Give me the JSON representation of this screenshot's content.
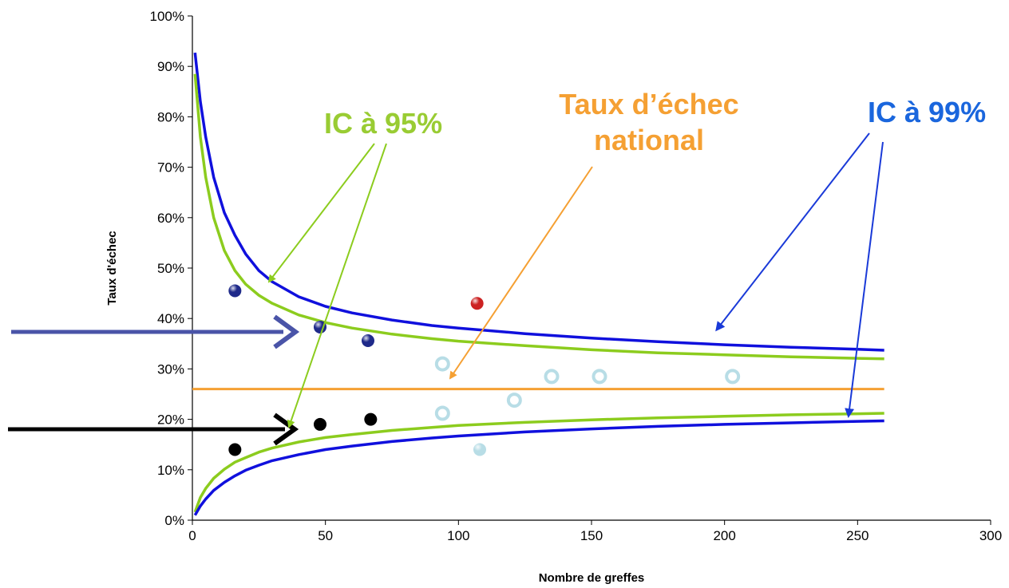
{
  "chart_data": {
    "type": "scatter",
    "xlabel": "Nombre de greffes",
    "ylabel": "Taux d'échec",
    "xlim": [
      0,
      300
    ],
    "ylim": [
      0,
      100
    ],
    "x_ticks": [
      "0",
      "50",
      "100",
      "150",
      "200",
      "250",
      "300"
    ],
    "y_ticks": [
      "0%",
      "10%",
      "20%",
      "30%",
      "40%",
      "50%",
      "60%",
      "70%",
      "80%",
      "90%",
      "100%"
    ],
    "national_rate": 26,
    "series": [
      {
        "kind": "points",
        "color": "#1f2a8a",
        "style": "filled",
        "points": [
          [
            16,
            45.5
          ],
          [
            48,
            38.3
          ],
          [
            66,
            35.6
          ]
        ]
      },
      {
        "kind": "points",
        "color": "#cc2222",
        "style": "filled",
        "points": [
          [
            107,
            43
          ]
        ]
      },
      {
        "kind": "points",
        "color": "#000000",
        "style": "filled",
        "points": [
          [
            16,
            14
          ],
          [
            48,
            19
          ],
          [
            67,
            20
          ]
        ]
      },
      {
        "kind": "points",
        "color": "#b8dde6",
        "style": "open",
        "points": [
          [
            94,
            31
          ],
          [
            94,
            21.2
          ],
          [
            121,
            23.8
          ],
          [
            135,
            28.5
          ],
          [
            153,
            28.5
          ],
          [
            203,
            28.5
          ]
        ]
      },
      {
        "kind": "points",
        "color": "#b8dde6",
        "style": "filled",
        "points": [
          [
            108,
            14
          ]
        ]
      }
    ],
    "curves": {
      "ic99_upper": {
        "color": "#1010dd",
        "x": [
          1,
          3,
          5,
          8,
          12,
          16,
          20,
          25,
          30,
          40,
          50,
          60,
          75,
          90,
          100,
          125,
          150,
          175,
          200,
          225,
          250,
          260
        ],
        "y": [
          92.7,
          83,
          76,
          68,
          61,
          56.5,
          52.8,
          49.5,
          47.3,
          44.3,
          42.4,
          41.1,
          39.7,
          38.6,
          38.1,
          37,
          36.1,
          35.4,
          34.8,
          34.3,
          33.9,
          33.7
        ]
      },
      "ic95_upper": {
        "color": "#8ccc1e",
        "x": [
          1,
          3,
          5,
          8,
          12,
          16,
          20,
          25,
          30,
          40,
          50,
          60,
          75,
          90,
          100,
          125,
          150,
          175,
          200,
          225,
          250,
          260
        ],
        "y": [
          88.5,
          76,
          68,
          60,
          53.5,
          49.5,
          46.8,
          44.6,
          43,
          40.7,
          39.2,
          38.1,
          36.9,
          36,
          35.5,
          34.6,
          33.8,
          33.2,
          32.8,
          32.4,
          32.1,
          32
        ]
      },
      "ic95_lower": {
        "color": "#8ccc1e",
        "x": [
          1,
          3,
          5,
          8,
          12,
          16,
          20,
          25,
          30,
          40,
          50,
          60,
          75,
          90,
          100,
          125,
          150,
          175,
          200,
          225,
          250,
          260
        ],
        "y": [
          1.6,
          4.5,
          6.3,
          8.3,
          10.1,
          11.5,
          12.4,
          13.5,
          14.3,
          15.5,
          16.4,
          17,
          17.8,
          18.4,
          18.8,
          19.4,
          19.9,
          20.3,
          20.6,
          20.9,
          21.1,
          21.2
        ]
      },
      "ic99_lower": {
        "color": "#1010dd",
        "x": [
          1,
          3,
          5,
          8,
          12,
          16,
          20,
          25,
          30,
          40,
          50,
          60,
          75,
          90,
          100,
          125,
          150,
          175,
          200,
          225,
          250,
          260
        ],
        "y": [
          1,
          2.8,
          4.2,
          5.9,
          7.5,
          8.8,
          9.9,
          10.9,
          11.8,
          13,
          14,
          14.7,
          15.6,
          16.3,
          16.7,
          17.5,
          18.1,
          18.6,
          19,
          19.3,
          19.6,
          19.7
        ]
      }
    },
    "annotations": {
      "ic95": {
        "text": "IC à 95%",
        "color": "#99cc33"
      },
      "national": {
        "line1": "Taux d’échec",
        "line2": "national",
        "color": "#f5a033"
      },
      "ic99": {
        "text": "IC à 99%",
        "color": "#1a66dd"
      }
    },
    "colors": {
      "national_line": "#f5a033",
      "arrow_blue": "#4a54a8",
      "arrow_black": "#000000"
    }
  }
}
